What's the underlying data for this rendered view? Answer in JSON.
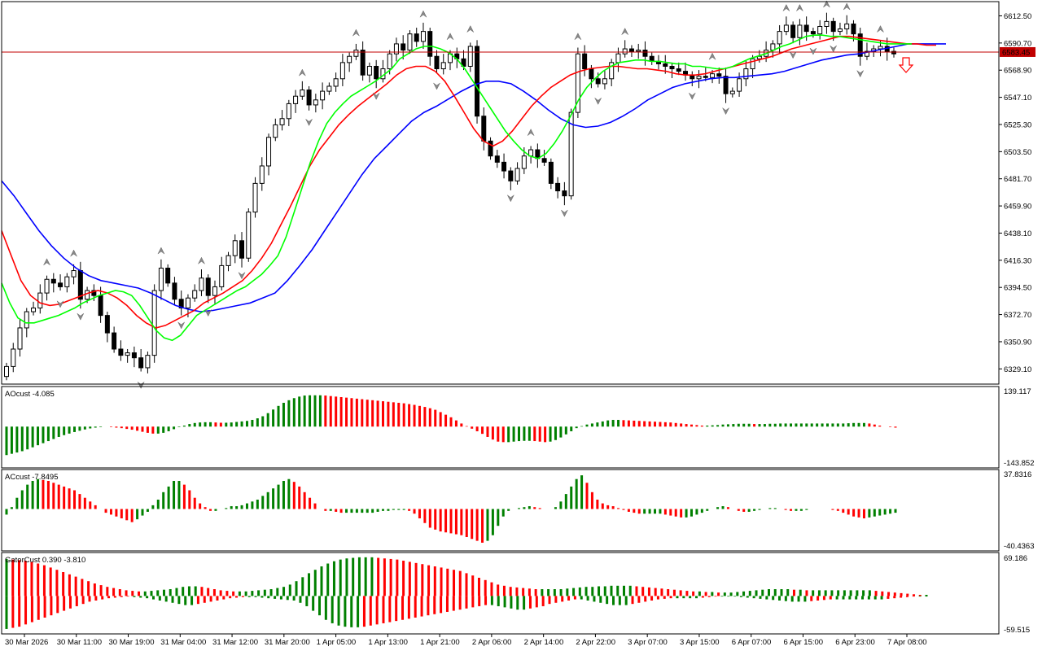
{
  "price_axis": {
    "ticks": [
      "6612.50",
      "6590.70",
      "6568.90",
      "6547.10",
      "6525.30",
      "6503.50",
      "6481.70",
      "6459.90",
      "6438.10",
      "6416.30",
      "6394.50",
      "6372.70",
      "6350.90",
      "6329.10"
    ],
    "current_price": "6583.45",
    "ylim": [
      6318.2,
      6620.0
    ]
  },
  "time_axis": {
    "labels": [
      "30 Mar 2026",
      "30 Mar 11:00",
      "30 Mar 19:00",
      "31 Mar 04:00",
      "31 Mar 12:00",
      "31 Mar 20:00",
      "1 Apr 05:00",
      "1 Apr 13:00",
      "1 Apr 21:00",
      "2 Apr 06:00",
      "2 Apr 14:00",
      "2 Apr 22:00",
      "3 Apr 07:00",
      "3 Apr 15:00",
      "6 Apr 07:00",
      "6 Apr 15:00",
      "6 Apr 23:00",
      "7 Apr 08:00"
    ]
  },
  "indicators": {
    "ao": {
      "label": "AOcust -4.085",
      "max": "139.117",
      "min": "-143.852"
    },
    "ac": {
      "label": "ACcust -7.8495",
      "max": "37.8316",
      "min": "-40.4363"
    },
    "gator": {
      "label": "GatorCust 0.390 -3.810",
      "max": "69.186",
      "min": "-59.515"
    }
  },
  "colors": {
    "up_bar": "#008000",
    "down_bar": "#ff0000",
    "jaw": "#0000ff",
    "teeth": "#ff0000",
    "lips": "#00ff00",
    "price_line": "#c00000",
    "sell_arrow": "#ff0000"
  },
  "chart_data": [
    {
      "type": "candlestick",
      "title": "",
      "series": [
        {
          "name": "close",
          "values": [
            6331,
            6345,
            6362,
            6375,
            6378,
            6390,
            6401,
            6398,
            6395,
            6403,
            6408,
            6385,
            6392,
            6388,
            6372,
            6358,
            6345,
            6340,
            6342,
            6338,
            6330,
            6340,
            6392,
            6410,
            6398,
            6385,
            6378,
            6386,
            6392,
            6402,
            6388,
            6395,
            6412,
            6420,
            6432,
            6418,
            6455,
            6478,
            6492,
            6515,
            6525,
            6530,
            6542,
            6548,
            6553,
            6541,
            6545,
            6552,
            6556,
            6562,
            6575,
            6580,
            6585,
            6565,
            6572,
            6562,
            6570,
            6582,
            6590,
            6585,
            6598,
            6592,
            6600,
            6580,
            6570,
            6575,
            6582,
            6578,
            6572,
            6588,
            6532,
            6512,
            6500,
            6495,
            6488,
            6480,
            6490,
            6500,
            6505,
            6498,
            6495,
            6478,
            6472,
            6468,
            6535,
            6582,
            6570,
            6562,
            6558,
            6562,
            6575,
            6582,
            6586,
            6584,
            6585,
            6580,
            6576,
            6574,
            6572,
            6570,
            6568,
            6565,
            6562,
            6564,
            6563,
            6566,
            6564,
            6550,
            6552,
            6562,
            6570,
            6578,
            6580,
            6585,
            6590,
            6600,
            6605,
            6595,
            6605,
            6600,
            6598,
            6604,
            6608,
            6600,
            6602,
            6606,
            6598,
            6580,
            6584,
            6586,
            6588,
            6584,
            6582
          ]
        },
        {
          "name": "lips",
          "values": [
            6398,
            6382,
            6370,
            6366,
            6366,
            6368,
            6370,
            6372,
            6375,
            6378,
            6382,
            6385,
            6388,
            6390,
            6392,
            6391,
            6388,
            6380,
            6370,
            6360,
            6354,
            6352,
            6356,
            6364,
            6372,
            6376,
            6380,
            6384,
            6388,
            6392,
            6395,
            6400,
            6405,
            6412,
            6420,
            6435,
            6455,
            6475,
            6495,
            6512,
            6526,
            6535,
            6542,
            6548,
            6552,
            6556,
            6560,
            6565,
            6570,
            6578,
            6582,
            6586,
            6588,
            6588,
            6586,
            6583,
            6578,
            6570,
            6560,
            6550,
            6540,
            6530,
            6520,
            6512,
            6505,
            6500,
            6498,
            6502,
            6510,
            6520,
            6532,
            6545,
            6555,
            6562,
            6568,
            6572,
            6575,
            6576,
            6577,
            6577,
            6576,
            6576,
            6575,
            6574,
            6574,
            6572,
            6572,
            6571,
            6570,
            6570,
            6572,
            6575,
            6578,
            6580,
            6582,
            6585,
            6588,
            6590,
            6593,
            6596,
            6597,
            6597,
            6596,
            6596,
            6595,
            6594,
            6593,
            6592,
            6591,
            6590,
            6590,
            6590,
            6590
          ]
        },
        {
          "name": "teeth",
          "values": [
            6440,
            6420,
            6400,
            6388,
            6382,
            6380,
            6381,
            6384,
            6387,
            6390,
            6392,
            6390,
            6386,
            6380,
            6372,
            6366,
            6362,
            6364,
            6368,
            6372,
            6376,
            6382,
            6386,
            6390,
            6395,
            6400,
            6408,
            6418,
            6430,
            6445,
            6460,
            6476,
            6492,
            6505,
            6515,
            6525,
            6533,
            6540,
            6546,
            6552,
            6558,
            6565,
            6570,
            6572,
            6572,
            6568,
            6560,
            6548,
            6535,
            6522,
            6512,
            6508,
            6512,
            6520,
            6530,
            6540,
            6548,
            6555,
            6560,
            6565,
            6568,
            6570,
            6571,
            6572,
            6572,
            6571,
            6570,
            6570,
            6569,
            6568,
            6566,
            6565,
            6565,
            6566,
            6568,
            6570,
            6572,
            6574,
            6576,
            6578,
            6580,
            6583,
            6586,
            6588,
            6590,
            6592,
            6594,
            6596,
            6596,
            6595,
            6594,
            6593,
            6592,
            6591,
            6590,
            6590,
            6589,
            6589
          ]
        },
        {
          "name": "jaw",
          "values": [
            6480,
            6468,
            6454,
            6440,
            6428,
            6418,
            6410,
            6404,
            6400,
            6398,
            6396,
            6394,
            6390,
            6385,
            6380,
            6377,
            6375,
            6376,
            6378,
            6380,
            6382,
            6386,
            6390,
            6400,
            6412,
            6425,
            6440,
            6455,
            6470,
            6485,
            6498,
            6508,
            6518,
            6528,
            6535,
            6540,
            6546,
            6552,
            6557,
            6560,
            6560,
            6558,
            6552,
            6545,
            6537,
            6530,
            6525,
            6523,
            6524,
            6527,
            6532,
            6538,
            6545,
            6550,
            6555,
            6558,
            6560,
            6562,
            6563,
            6563,
            6564,
            6565,
            6566,
            6568,
            6571,
            6574,
            6577,
            6579,
            6581,
            6582,
            6584,
            6586,
            6588,
            6590,
            6590,
            6590,
            6590
          ]
        }
      ]
    },
    {
      "type": "bar",
      "title": "AOcust -4.085",
      "ylim": [
        -143.852,
        139.117
      ],
      "values": [
        -110,
        -105,
        -100,
        -95,
        -88,
        -80,
        -72,
        -64,
        -56,
        -48,
        -40,
        -33,
        -27,
        -21,
        -16,
        -11,
        -7,
        -4,
        -2,
        0,
        -2,
        -4,
        -6,
        -9,
        -12,
        -16,
        -20,
        -24,
        -27,
        -27,
        -24,
        -18,
        -10,
        -2,
        4,
        10,
        14,
        16,
        17,
        17,
        16,
        15,
        15,
        16,
        18,
        20,
        22,
        26,
        32,
        40,
        52,
        66,
        80,
        92,
        102,
        110,
        116,
        120,
        121,
        121,
        121,
        120,
        118,
        116,
        114,
        112,
        110,
        108,
        106,
        104,
        102,
        100,
        98,
        96,
        94,
        92,
        90,
        87,
        84,
        80,
        76,
        71,
        65,
        56,
        46,
        36,
        24,
        12,
        2,
        -8,
        -18,
        -28,
        -40,
        -50,
        -58,
        -60,
        -60,
        -58,
        -56,
        -55,
        -55,
        -56,
        -58,
        -60,
        -58,
        -52,
        -42,
        -30,
        -18,
        -6,
        2,
        8,
        12,
        16,
        20,
        24,
        26,
        26,
        25,
        24,
        23,
        22,
        21,
        20,
        19,
        18,
        17,
        16,
        14,
        12,
        10,
        8,
        6,
        4,
        4,
        5,
        6,
        8,
        9,
        10,
        11,
        11,
        11,
        10,
        10,
        10,
        11,
        11,
        12,
        12,
        12,
        12,
        12,
        12,
        12,
        12,
        12,
        12,
        12,
        12,
        12,
        13,
        14,
        14,
        14,
        12,
        8,
        4,
        0,
        -2,
        -4
      ]
    },
    {
      "type": "bar",
      "title": "ACcust -7.8495",
      "ylim": [
        -40.4363,
        37.8316
      ],
      "values": [
        -6,
        2,
        12,
        20,
        26,
        30,
        32,
        31,
        30,
        28,
        26,
        24,
        22,
        20,
        16,
        12,
        8,
        4,
        0,
        -4,
        -6,
        -8,
        -10,
        -12,
        -14,
        -11,
        -7,
        -3,
        4,
        10,
        18,
        24,
        30,
        30,
        26,
        20,
        12,
        6,
        2,
        -2,
        -2,
        0,
        1,
        3,
        3,
        4,
        6,
        8,
        10,
        14,
        18,
        22,
        26,
        30,
        32,
        29,
        24,
        18,
        12,
        6,
        0,
        -2,
        -2,
        -3,
        -4,
        -4,
        -4,
        -4,
        -4,
        -4,
        -4,
        -3,
        -2,
        -2,
        -1,
        -1,
        -1,
        -2,
        -5,
        -10,
        -15,
        -20,
        -22,
        -24,
        -25,
        -26,
        -27,
        -28,
        -30,
        -32,
        -34,
        -36,
        -34,
        -28,
        -18,
        -8,
        -2,
        0,
        1,
        2,
        3,
        2,
        1,
        0,
        0,
        2,
        8,
        16,
        24,
        32,
        36,
        28,
        18,
        10,
        6,
        4,
        3,
        1,
        -1,
        -3,
        -4,
        -5,
        -5,
        -5,
        -5,
        -5,
        -6,
        -7,
        -8,
        -9,
        -9,
        -8,
        -6,
        -4,
        -2,
        0,
        2,
        3,
        2,
        0,
        -2,
        -3,
        -3,
        -2,
        -1,
        0,
        1,
        1,
        0,
        -1,
        -2,
        -2,
        -2,
        -1,
        0,
        0,
        0,
        0,
        -1,
        -2,
        -4,
        -6,
        -8,
        -9,
        -10,
        -9,
        -8,
        -7,
        -6,
        -5,
        -4
      ]
    },
    {
      "type": "bar",
      "title": "GatorCust 0.390 -3.810",
      "ylim": [
        -59.515,
        69.186
      ],
      "series": [
        {
          "name": "upper",
          "values": [
            65,
            64,
            63,
            62,
            60,
            57,
            54,
            50,
            46,
            42,
            38,
            34,
            30,
            26,
            22,
            19,
            16,
            14,
            12,
            10,
            9,
            8,
            8,
            9,
            10,
            11,
            12,
            14,
            16,
            17,
            17,
            16,
            14,
            12,
            10,
            9,
            8,
            8,
            8,
            9,
            10,
            11,
            12,
            14,
            16,
            20,
            26,
            33,
            40,
            46,
            52,
            57,
            61,
            64,
            66,
            67,
            68,
            68,
            68,
            67,
            66,
            65,
            64,
            62,
            60,
            58,
            56,
            54,
            52,
            50,
            48,
            46,
            44,
            40,
            36,
            32,
            28,
            24,
            20,
            18,
            16,
            15,
            14,
            13,
            12,
            12,
            12,
            12,
            12,
            13,
            14,
            15,
            16,
            16,
            17,
            17,
            18,
            18,
            18,
            18,
            17,
            16,
            15,
            14,
            13,
            12,
            11,
            10,
            9,
            8,
            8,
            7,
            7,
            6,
            6,
            6,
            7,
            8,
            9,
            10,
            11,
            12,
            12,
            12,
            12,
            11,
            11,
            10,
            10,
            10,
            10,
            10,
            10,
            10,
            10,
            10,
            10,
            10,
            9,
            8,
            7,
            6,
            5,
            4,
            3,
            2,
            2
          ]
        },
        {
          "name": "lower",
          "values": [
            -58,
            -56,
            -54,
            -50,
            -46,
            -42,
            -38,
            -34,
            -30,
            -26,
            -22,
            -18,
            -14,
            -10,
            -8,
            -6,
            -4,
            -3,
            -2,
            -1,
            -2,
            -3,
            -4,
            -6,
            -8,
            -10,
            -12,
            -14,
            -16,
            -16,
            -14,
            -12,
            -10,
            -8,
            -6,
            -4,
            -3,
            -2,
            -2,
            -2,
            -3,
            -4,
            -5,
            -6,
            -7,
            -8,
            -12,
            -18,
            -26,
            -34,
            -42,
            -48,
            -52,
            -54,
            -55,
            -55,
            -54,
            -52,
            -50,
            -48,
            -46,
            -44,
            -42,
            -40,
            -38,
            -36,
            -34,
            -32,
            -30,
            -28,
            -26,
            -24,
            -22,
            -20,
            -18,
            -16,
            -16,
            -18,
            -20,
            -22,
            -24,
            -24,
            -22,
            -20,
            -18,
            -14,
            -12,
            -10,
            -8,
            -6,
            -6,
            -8,
            -10,
            -12,
            -14,
            -16,
            -16,
            -16,
            -14,
            -12,
            -10,
            -8,
            -6,
            -5,
            -4,
            -4,
            -4,
            -4,
            -4,
            -3,
            -2,
            -1,
            -1,
            -1,
            -1,
            -2,
            -3,
            -4,
            -5,
            -6,
            -7,
            -8,
            -9,
            -10,
            -10,
            -10,
            -9,
            -8,
            -7,
            -6,
            -6,
            -6,
            -6,
            -6,
            -6,
            -6,
            -6,
            -6,
            -5,
            -4,
            -3,
            -2,
            -1,
            -1,
            -1
          ]
        }
      ]
    }
  ]
}
